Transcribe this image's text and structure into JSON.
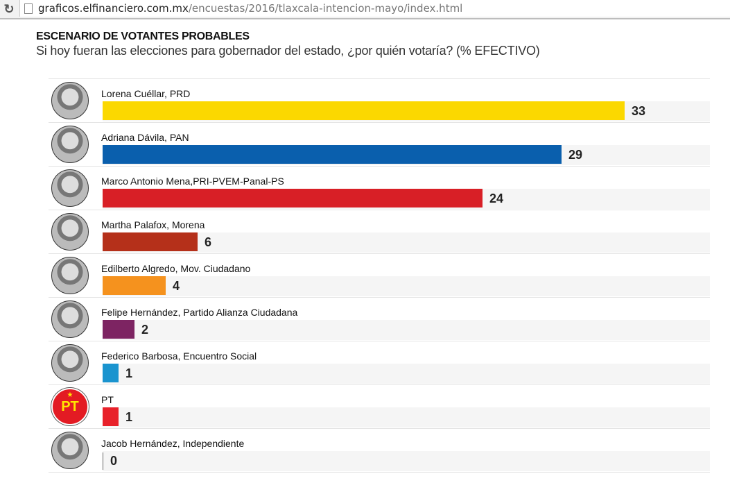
{
  "browser": {
    "url_host": "graficos.elfinanciero.com.mx",
    "url_path": "/encuestas/2016/tlaxcala-intencion-mayo/index.html"
  },
  "chart_data": {
    "type": "bar",
    "orientation": "horizontal",
    "title": "ESCENARIO DE VOTANTES PROBABLES",
    "subtitle": "Si hoy fueran las elecciones para gobernador del estado, ¿por quién votaría? (% EFECTIVO)",
    "xlim": [
      0,
      38.4
    ],
    "categories": [
      "Lorena Cuéllar, PRD",
      "Adriana Dávila, PAN",
      "Marco Antonio Mena,PRI-PVEM-Panal-PS",
      "Martha Palafox,  Morena",
      "Edilberto Algredo, Mov. Ciudadano",
      "Felipe Hernández, Partido Alianza Ciudadana",
      "Federico Barbosa, Encuentro Social",
      "PT",
      "Jacob Hernández, Independiente"
    ],
    "values": [
      33,
      29,
      24,
      6,
      4,
      2,
      1,
      1,
      0
    ],
    "value_labels": [
      "33",
      "29",
      "24",
      "6",
      "4",
      "2",
      "1",
      "1",
      "0"
    ],
    "colors": [
      "#fbd800",
      "#0a5fad",
      "#d81f26",
      "#b5301a",
      "#f5921e",
      "#7d2462",
      "#1a94cf",
      "#e8212a",
      "#888888"
    ],
    "avatar_icons": [
      "portrait",
      "portrait",
      "portrait",
      "portrait",
      "portrait",
      "portrait",
      "portrait",
      "pt-logo",
      "portrait"
    ],
    "pt_logo_text": "PT"
  }
}
